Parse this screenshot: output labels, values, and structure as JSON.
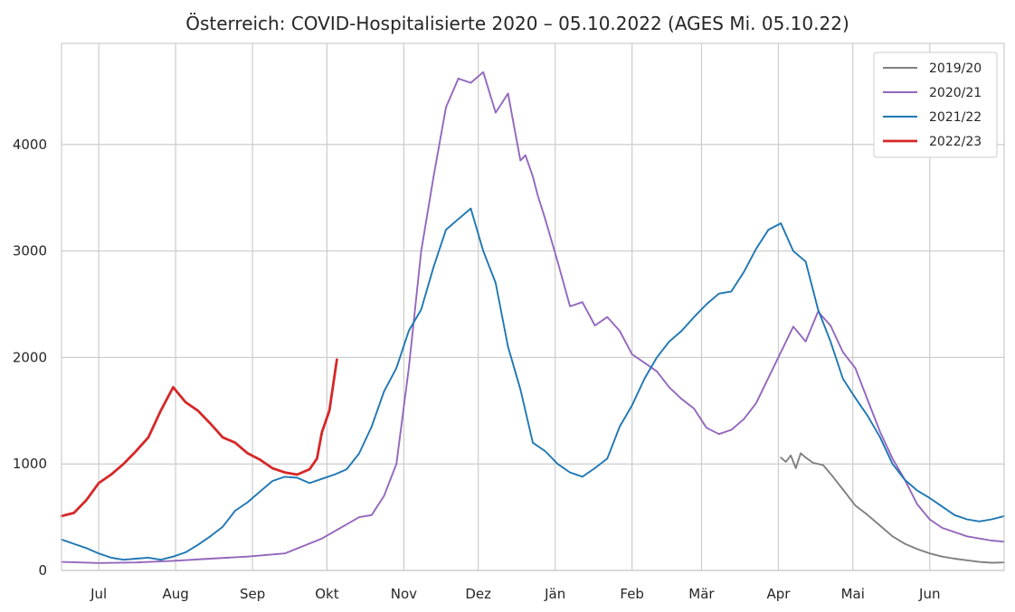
{
  "chart_data": {
    "type": "line",
    "title": "Österreich: COVID-Hospitalisierte 2020 – 05.10.2022 (AGES Mi. 05.10.22)",
    "xlabel": "",
    "ylabel": "",
    "x_ticks": [
      "Jul",
      "Aug",
      "Sep",
      "Okt",
      "Nov",
      "Dez",
      "Jän",
      "Feb",
      "Mär",
      "Apr",
      "Mai",
      "Jun"
    ],
    "x_range_days": [
      -15,
      365
    ],
    "x_unit": "days since 1 Jul",
    "ylim": [
      0,
      4950
    ],
    "y_ticks": [
      0,
      1000,
      2000,
      3000,
      4000
    ],
    "grid": true,
    "legend_position": "top-right",
    "series": [
      {
        "name": "2019/20",
        "color": "#808080",
        "x": [
          275,
          277,
          279,
          281,
          283,
          285,
          288,
          292,
          296,
          300,
          305,
          310,
          315,
          320,
          325,
          330,
          335,
          340,
          345,
          350,
          355,
          360,
          365
        ],
        "values": [
          1060,
          1020,
          1080,
          960,
          1100,
          1060,
          1010,
          990,
          880,
          760,
          610,
          520,
          420,
          320,
          250,
          200,
          160,
          130,
          110,
          95,
          80,
          72,
          75
        ]
      },
      {
        "name": "2020/21",
        "color": "#9467bd",
        "x": [
          -15,
          0,
          15,
          30,
          45,
          60,
          75,
          90,
          105,
          110,
          115,
          120,
          125,
          130,
          135,
          140,
          145,
          150,
          155,
          160,
          165,
          168,
          170,
          172,
          175,
          177,
          180,
          185,
          190,
          195,
          200,
          205,
          210,
          215,
          220,
          225,
          230,
          235,
          240,
          245,
          250,
          255,
          260,
          265,
          270,
          275,
          280,
          285,
          290,
          295,
          300,
          305,
          310,
          315,
          320,
          325,
          330,
          335,
          340,
          345,
          350,
          355,
          360,
          365
        ],
        "values": [
          80,
          70,
          75,
          90,
          110,
          130,
          160,
          300,
          500,
          520,
          700,
          1000,
          1900,
          3000,
          3700,
          4350,
          4620,
          4580,
          4680,
          4300,
          4480,
          4100,
          3850,
          3900,
          3700,
          3520,
          3300,
          2900,
          2480,
          2520,
          2300,
          2380,
          2250,
          2030,
          1950,
          1870,
          1720,
          1610,
          1520,
          1340,
          1280,
          1320,
          1420,
          1570,
          1810,
          2050,
          2290,
          2150,
          2430,
          2300,
          2050,
          1900,
          1600,
          1300,
          1050,
          850,
          620,
          480,
          400,
          360,
          320,
          300,
          280,
          270
        ]
      },
      {
        "name": "2021/22",
        "color": "#1f77b4",
        "x": [
          -15,
          -10,
          -5,
          0,
          5,
          10,
          15,
          20,
          25,
          30,
          35,
          40,
          45,
          50,
          55,
          60,
          65,
          70,
          75,
          80,
          85,
          90,
          95,
          100,
          105,
          110,
          115,
          120,
          125,
          130,
          135,
          140,
          145,
          150,
          155,
          160,
          165,
          170,
          175,
          180,
          185,
          190,
          195,
          200,
          205,
          210,
          215,
          220,
          225,
          230,
          235,
          240,
          245,
          250,
          255,
          260,
          265,
          270,
          275,
          280,
          285,
          290,
          295,
          300,
          305,
          310,
          315,
          320,
          325,
          330,
          335,
          340,
          345,
          350,
          355,
          360,
          365
        ],
        "values": [
          290,
          250,
          210,
          160,
          120,
          100,
          110,
          120,
          100,
          130,
          170,
          240,
          320,
          410,
          560,
          640,
          740,
          840,
          880,
          870,
          820,
          860,
          900,
          950,
          1100,
          1350,
          1680,
          1900,
          2250,
          2450,
          2850,
          3200,
          3300,
          3400,
          3000,
          2700,
          2100,
          1700,
          1200,
          1120,
          1000,
          920,
          880,
          960,
          1050,
          1350,
          1550,
          1800,
          2000,
          2150,
          2250,
          2380,
          2500,
          2600,
          2620,
          2800,
          3020,
          3200,
          3260,
          3000,
          2900,
          2450,
          2150,
          1800,
          1620,
          1450,
          1250,
          1000,
          850,
          750,
          680,
          600,
          520,
          480,
          460,
          480,
          510
        ]
      },
      {
        "name": "2022/23",
        "color": "#d62728",
        "x": [
          -15,
          -10,
          -5,
          0,
          5,
          10,
          15,
          20,
          25,
          30,
          35,
          40,
          45,
          50,
          55,
          60,
          65,
          70,
          75,
          80,
          85,
          88,
          90,
          93,
          96
        ],
        "values": [
          510,
          540,
          660,
          820,
          900,
          1000,
          1120,
          1250,
          1500,
          1720,
          1580,
          1500,
          1380,
          1250,
          1200,
          1100,
          1040,
          960,
          920,
          900,
          950,
          1050,
          1300,
          1500,
          1980
        ]
      }
    ]
  }
}
